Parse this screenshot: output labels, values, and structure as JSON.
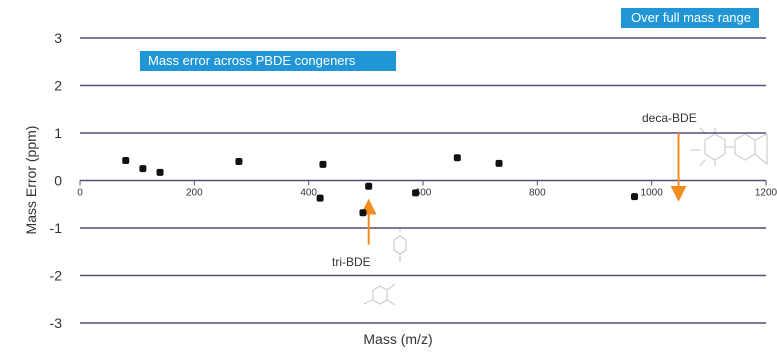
{
  "colors": {
    "banner": "#2196d6",
    "grid": "#5a4a7a",
    "point": "#111111",
    "arrow": "#f28c1e",
    "text": "#333333"
  },
  "banners": {
    "top_right": "Over full mass range",
    "inner": "Mass error across PBDE congeners"
  },
  "annotations": {
    "tri": "tri-BDE",
    "deca": "deca-BDE"
  },
  "chart_data": {
    "type": "scatter",
    "xlabel": "Mass (m/z)",
    "ylabel": "Mass Error (ppm)",
    "xlim": [
      0,
      1200
    ],
    "ylim": [
      -3,
      3
    ],
    "x_ticks": [
      0,
      200,
      400,
      600,
      800,
      1000,
      1200
    ],
    "y_ticks": [
      3,
      2,
      1,
      0,
      -1,
      -2,
      -3
    ],
    "grid": "horizontal",
    "points": [
      {
        "x": 80,
        "y": 0.42
      },
      {
        "x": 110,
        "y": 0.25
      },
      {
        "x": 140,
        "y": 0.17
      },
      {
        "x": 278,
        "y": 0.4
      },
      {
        "x": 420,
        "y": -0.37
      },
      {
        "x": 425,
        "y": 0.34
      },
      {
        "x": 495,
        "y": -0.68
      },
      {
        "x": 505,
        "y": -0.12
      },
      {
        "x": 587,
        "y": -0.26
      },
      {
        "x": 660,
        "y": 0.48
      },
      {
        "x": 733,
        "y": 0.36
      },
      {
        "x": 970,
        "y": -0.34
      }
    ],
    "arrows": [
      {
        "label_key": "tri",
        "x": 505,
        "y_from": -1.35,
        "y_to": -0.55
      },
      {
        "label_key": "deca",
        "x": 1047,
        "y_from": 1.0,
        "y_to": -0.28
      }
    ]
  }
}
